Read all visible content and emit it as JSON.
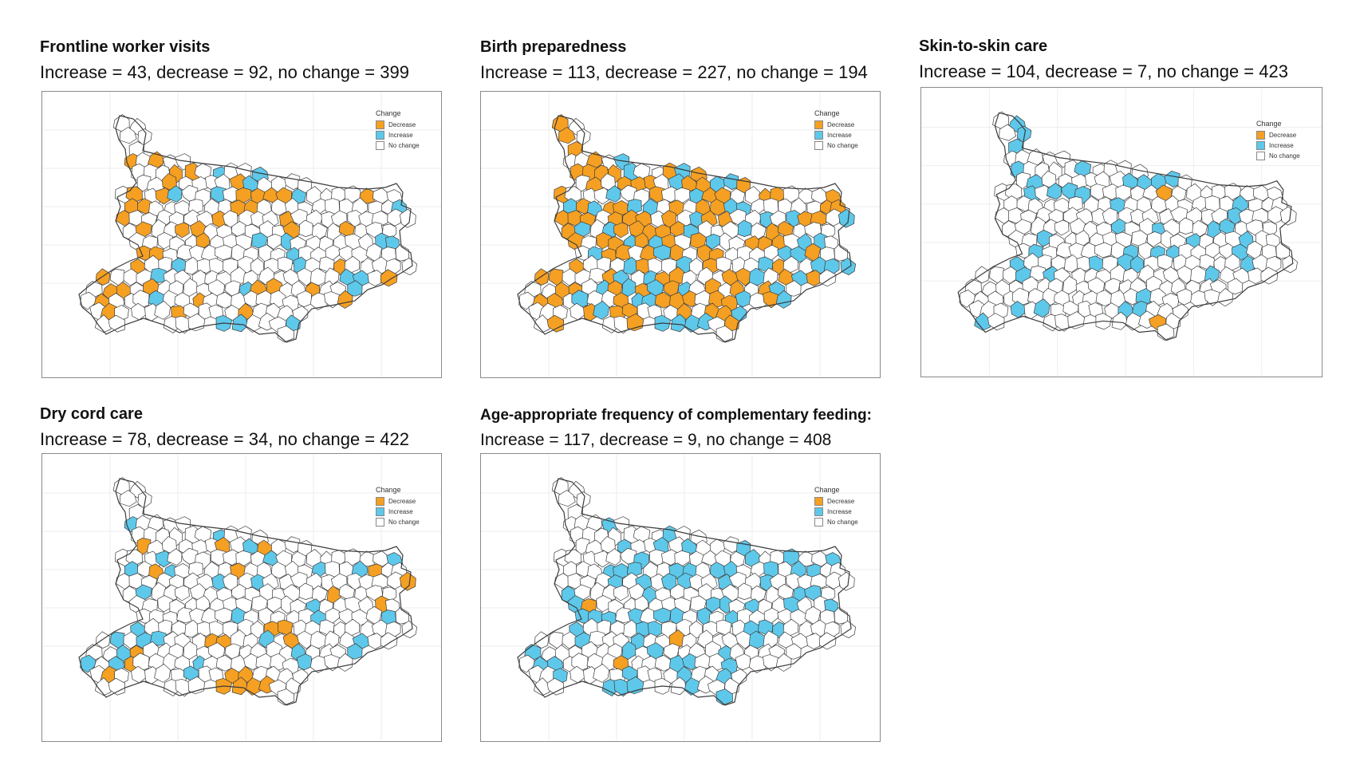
{
  "colors": {
    "decrease": "#f5a022",
    "increase": "#5ec8ea",
    "no_change": "#ffffff",
    "outline": "#3c3c3c"
  },
  "legend": {
    "title": "Change",
    "decrease": "Decrease",
    "increase": "Increase",
    "no_change": "No change"
  },
  "panels": [
    {
      "title": "Frontline worker visits",
      "stats": "Increase = 43, decrease = 92, no change = 399",
      "counts": {
        "increase": 43,
        "decrease": 92,
        "no_change": 399
      }
    },
    {
      "title": "Birth preparedness",
      "stats": "Increase = 113, decrease = 227, no change = 194",
      "counts": {
        "increase": 113,
        "decrease": 227,
        "no_change": 194
      }
    },
    {
      "title": "Skin-to-skin care",
      "stats": "Increase = 104, decrease = 7, no change = 423",
      "counts": {
        "increase": 104,
        "decrease": 7,
        "no_change": 423
      }
    },
    {
      "title": "Dry cord care",
      "stats": "Increase = 78, decrease = 34, no change = 422",
      "counts": {
        "increase": 78,
        "decrease": 34,
        "no_change": 422
      }
    },
    {
      "title": "Age-appropriate frequency of complementary feeding:",
      "stats": "Increase = 117, decrease = 9, no change = 408",
      "counts": {
        "increase": 117,
        "decrease": 9,
        "no_change": 408
      }
    }
  ]
}
